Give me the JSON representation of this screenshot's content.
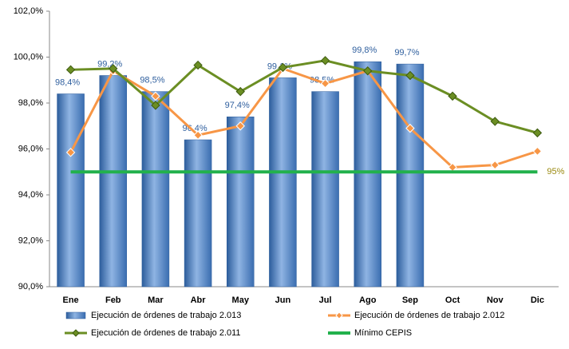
{
  "chart_data": {
    "type": "combo",
    "categories": [
      "Ene",
      "Feb",
      "Mar",
      "Abr",
      "May",
      "Jun",
      "Jul",
      "Ago",
      "Sep",
      "Oct",
      "Nov",
      "Dic"
    ],
    "ylim": [
      90,
      102
    ],
    "yticks": [
      {
        "value": 90,
        "label": "90,0%"
      },
      {
        "value": 92,
        "label": "92,0%"
      },
      {
        "value": 94,
        "label": "94,0%"
      },
      {
        "value": 96,
        "label": "96,0%"
      },
      {
        "value": 98,
        "label": "98,0%"
      },
      {
        "value": 100,
        "label": "100,0%"
      },
      {
        "value": 102,
        "label": "102,0%"
      }
    ],
    "grid": false,
    "legend": "bottom",
    "series": [
      {
        "name": "Ejecución de órdenes de trabajo 2.013",
        "type": "bar",
        "color": "#4a7ebf",
        "values": [
          98.4,
          99.2,
          98.5,
          96.4,
          97.4,
          99.1,
          98.5,
          99.8,
          99.7,
          null,
          null,
          null
        ],
        "value_labels": [
          "98,4%",
          "99,2%",
          "98,5%",
          "96,4%",
          "97,4%",
          "99,1%",
          "98,5%",
          "99,8%",
          "99,7%",
          null,
          null,
          null
        ]
      },
      {
        "name": "Ejecución de órdenes de trabajo 2.012",
        "type": "line",
        "color": "#f79646",
        "marker": "diamond",
        "values": [
          95.85,
          99.4,
          98.3,
          96.6,
          97.0,
          99.5,
          98.85,
          99.4,
          96.9,
          95.2,
          95.3,
          95.9
        ]
      },
      {
        "name": "Ejecución de órdenes de trabajo 2.011",
        "type": "line",
        "color": "#6b8e23",
        "marker": "diamond",
        "values": [
          99.45,
          99.5,
          97.9,
          99.65,
          98.5,
          99.55,
          99.85,
          99.4,
          99.2,
          98.3,
          97.2,
          96.7
        ]
      },
      {
        "name": "Mínimo CEPIS",
        "type": "line",
        "color": "#22b14c",
        "marker": "none",
        "values": [
          95,
          95,
          95,
          95,
          95,
          95,
          95,
          95,
          95,
          95,
          95,
          95
        ],
        "value_labels": [
          null,
          null,
          null,
          null,
          null,
          null,
          null,
          null,
          null,
          null,
          null,
          "95%"
        ]
      }
    ]
  }
}
